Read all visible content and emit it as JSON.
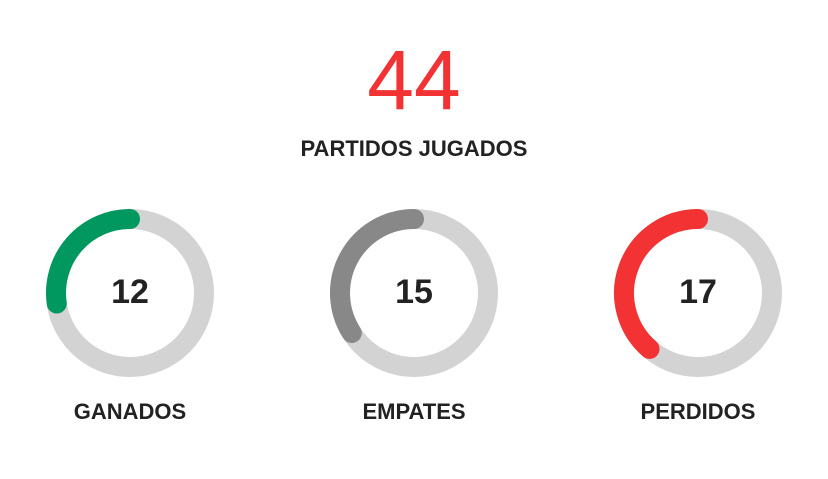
{
  "total": {
    "value": "44",
    "label": "PARTIDOS JUGADOS",
    "color": "#f33333"
  },
  "stats": [
    {
      "value": 12,
      "label": "GANADOS",
      "color": "#019860"
    },
    {
      "value": 15,
      "label": "EMPATES",
      "color": "#888888"
    },
    {
      "value": 17,
      "label": "PERDIDOS",
      "color": "#f33333"
    }
  ],
  "track_color": "#d3d3d3"
}
